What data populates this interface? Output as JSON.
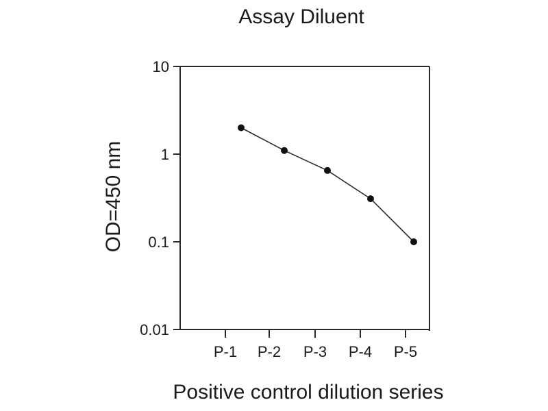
{
  "chart_data": {
    "type": "line",
    "title": "Assay Diluent",
    "xlabel": "Positive control dilution series",
    "ylabel": "OD=450 nm",
    "categories": [
      "P-1",
      "P-2",
      "P-3",
      "P-4",
      "P-5"
    ],
    "values": [
      2.0,
      1.1,
      0.65,
      0.31,
      0.1
    ],
    "y_scale": "log",
    "ylim": [
      0.01,
      10
    ],
    "y_ticks": [
      {
        "value": 10,
        "label": "10"
      },
      {
        "value": 1,
        "label": "1"
      },
      {
        "value": 0.1,
        "label": "0.1"
      },
      {
        "value": 0.01,
        "label": "0.01"
      }
    ],
    "grid": false,
    "legend": "none",
    "marker": "filled-circle",
    "colors": {
      "line": "#2b2b2b",
      "marker": "#111111",
      "axis": "#2b2b2b",
      "text": "#1a1a1a",
      "background": "#ffffff"
    }
  }
}
